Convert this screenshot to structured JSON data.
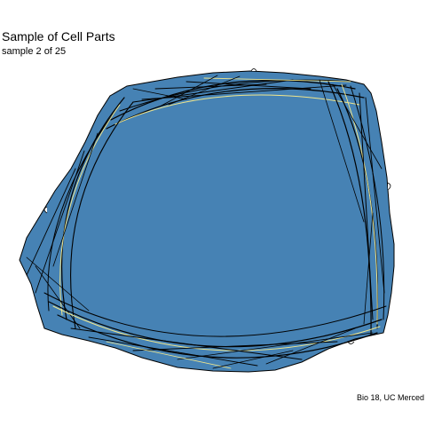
{
  "header": {
    "title": "Sample of Cell Parts",
    "subtitle": "sample 2 of 25"
  },
  "footer": {
    "caption": "Bio 18, UC Merced"
  },
  "figure": {
    "cell_fill": "#4682B4",
    "outline_color": "#000000",
    "fiber_color": "#000000",
    "fiber_highlight_color": "#F0E68C",
    "background": "#FFFFFF"
  }
}
